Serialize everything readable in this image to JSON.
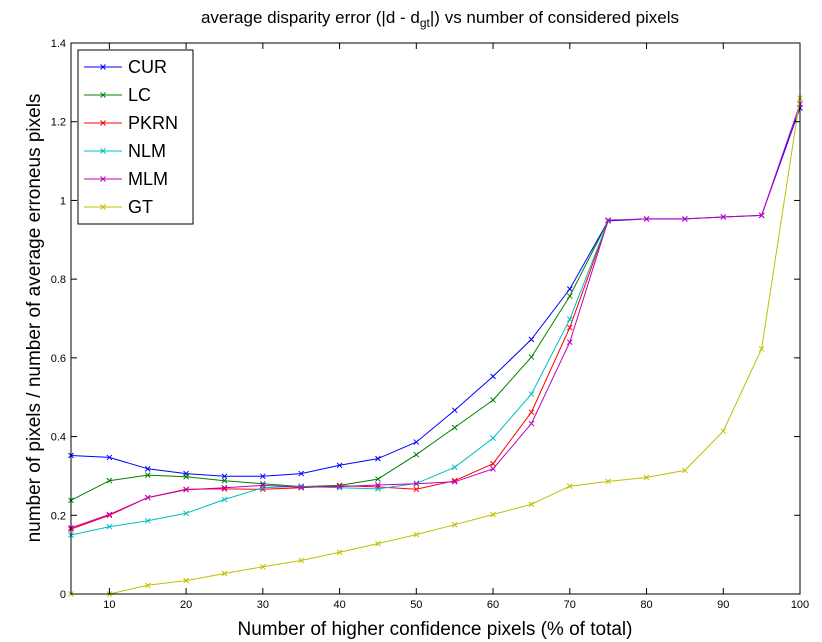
{
  "chart_data": {
    "type": "line",
    "title": "average disparity error (|d - d",
    "title_subscript": "gt",
    "title_suffix": "|) vs number of considered pixels",
    "xlabel": "Number of higher confidence pixels (% of total)",
    "ylabel": "number of pixels / number of average erroneus pixels",
    "xlim": [
      5,
      100
    ],
    "ylim": [
      0,
      1.4
    ],
    "x_ticks": [
      10,
      20,
      30,
      40,
      50,
      60,
      70,
      80,
      90,
      100
    ],
    "y_ticks": [
      0,
      0.2,
      0.4,
      0.6,
      0.8,
      1,
      1.2,
      1.4
    ],
    "x_tick_labels": [
      "10",
      "20",
      "30",
      "40",
      "50",
      "60",
      "70",
      "80",
      "90",
      "100"
    ],
    "y_tick_labels": [
      "0",
      "0.2",
      "0.4",
      "0.6",
      "0.8",
      "1",
      "1.2",
      "1.4"
    ],
    "legend_position": "top-left",
    "grid": false,
    "marker": "x",
    "series": [
      {
        "name": "CUR",
        "color": "#0000ff",
        "x": [
          5,
          10,
          15,
          20,
          25,
          30,
          35,
          40,
          45,
          50,
          55,
          60,
          65,
          70,
          75,
          80,
          85,
          90,
          95,
          100
        ],
        "values": [
          0.352,
          0.347,
          0.318,
          0.306,
          0.299,
          0.299,
          0.306,
          0.327,
          0.344,
          0.386,
          0.467,
          0.553,
          0.647,
          0.775,
          0.948,
          0.953,
          0.953,
          0.958,
          0.962,
          1.235
        ]
      },
      {
        "name": "LC",
        "color": "#008000",
        "x": [
          5,
          10,
          15,
          20,
          25,
          30,
          35,
          40,
          45,
          50,
          55,
          60,
          65,
          70,
          75
        ],
        "values": [
          0.238,
          0.288,
          0.302,
          0.298,
          0.288,
          0.28,
          0.273,
          0.276,
          0.292,
          0.354,
          0.423,
          0.493,
          0.602,
          0.757,
          0.948
        ]
      },
      {
        "name": "PKRN",
        "color": "#ff0000",
        "x": [
          5,
          10,
          15,
          20,
          25,
          30,
          35,
          40,
          45,
          50,
          55,
          60,
          65,
          70,
          75
        ],
        "values": [
          0.165,
          0.2,
          0.245,
          0.266,
          0.267,
          0.266,
          0.27,
          0.275,
          0.272,
          0.266,
          0.288,
          0.331,
          0.462,
          0.677,
          0.948
        ]
      },
      {
        "name": "NLM",
        "color": "#00bfbf",
        "x": [
          5,
          10,
          15,
          20,
          25,
          30,
          35,
          40,
          45,
          50,
          55,
          60,
          65,
          70,
          75
        ],
        "values": [
          0.15,
          0.171,
          0.186,
          0.205,
          0.24,
          0.27,
          0.274,
          0.27,
          0.267,
          0.281,
          0.322,
          0.396,
          0.508,
          0.698,
          0.948
        ]
      },
      {
        "name": "MLM",
        "color": "#bf00bf",
        "x": [
          5,
          10,
          15,
          20,
          25,
          30,
          35,
          40,
          45,
          50,
          55,
          60,
          65,
          70,
          75,
          80,
          85,
          90,
          95,
          100
        ],
        "values": [
          0.168,
          0.202,
          0.245,
          0.265,
          0.27,
          0.276,
          0.271,
          0.273,
          0.277,
          0.28,
          0.285,
          0.318,
          0.433,
          0.64,
          0.95,
          0.953,
          0.953,
          0.958,
          0.962,
          1.245
        ]
      },
      {
        "name": "GT",
        "color": "#bfbf00",
        "x": [
          5,
          10,
          15,
          20,
          25,
          30,
          35,
          40,
          45,
          50,
          55,
          60,
          65,
          70,
          75,
          80,
          85,
          90,
          95,
          100
        ],
        "values": [
          0.0,
          0.0,
          0.022,
          0.034,
          0.052,
          0.069,
          0.085,
          0.106,
          0.128,
          0.151,
          0.176,
          0.202,
          0.228,
          0.274,
          0.286,
          0.296,
          0.314,
          0.414,
          0.623,
          1.26
        ]
      }
    ]
  }
}
